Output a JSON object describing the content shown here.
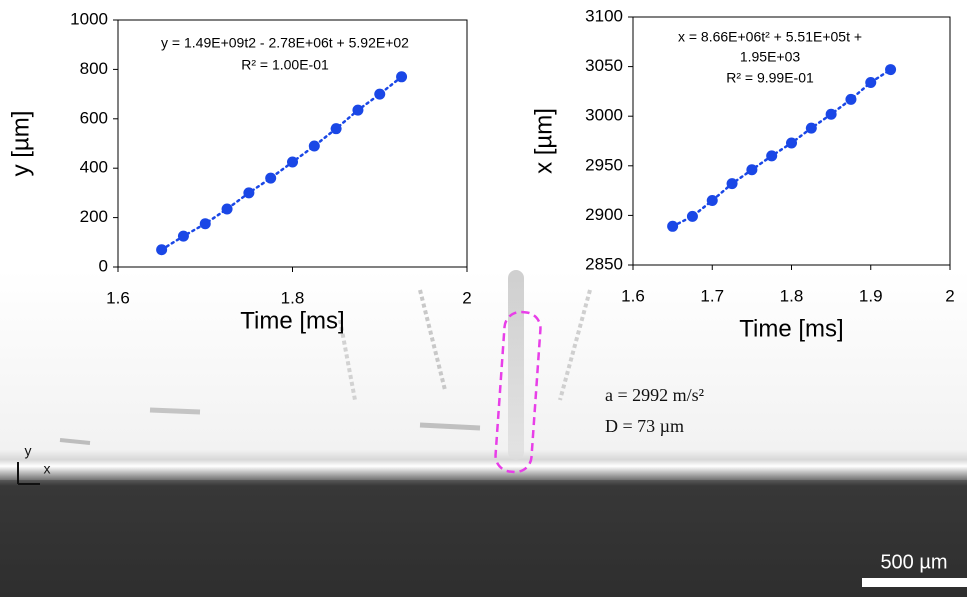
{
  "chart_data": [
    {
      "type": "scatter",
      "x": [
        1.65,
        1.675,
        1.7,
        1.725,
        1.75,
        1.775,
        1.8,
        1.825,
        1.85,
        1.875,
        1.9,
        1.925
      ],
      "values": [
        70,
        125,
        175,
        235,
        300,
        360,
        425,
        490,
        560,
        635,
        700,
        770
      ],
      "color": "#1a47e6",
      "xlabel": "Time [ms]",
      "ylabel": "y [µm]",
      "xlim": [
        1.6,
        2
      ],
      "xticks": [
        1.6,
        1.8,
        2
      ],
      "ylim": [
        0,
        1000
      ],
      "yticks": [
        0,
        200,
        400,
        600,
        800,
        1000
      ],
      "annotations": [
        "y = 1.49E+09t2 - 2.78E+06t + 5.92E+02",
        "R² = 1.00E-01"
      ]
    },
    {
      "type": "scatter",
      "x": [
        1.65,
        1.675,
        1.7,
        1.725,
        1.75,
        1.775,
        1.8,
        1.825,
        1.85,
        1.875,
        1.9,
        1.925
      ],
      "values": [
        2889,
        2899,
        2915,
        2932,
        2946,
        2960,
        2973,
        2988,
        3002,
        3017,
        3034,
        3047
      ],
      "color": "#1a47e6",
      "xlabel": "Time [ms]",
      "ylabel": "x [µm]",
      "xlim": [
        1.6,
        2
      ],
      "xticks": [
        1.6,
        1.7,
        1.8,
        1.9,
        2
      ],
      "ylim": [
        2850,
        3100
      ],
      "yticks": [
        2850,
        2900,
        2950,
        3000,
        3050,
        3100
      ],
      "annotations": [
        "x = 8.66E+06t² + 5.51E+05t +",
        "1.95E+03",
        "R² = 9.99E-01"
      ]
    }
  ],
  "image": {
    "annotations": [
      "a = 2992 m/s²",
      "D = 73 µm"
    ],
    "scale_bar": "500 µm",
    "axes": [
      "y",
      "x"
    ]
  }
}
